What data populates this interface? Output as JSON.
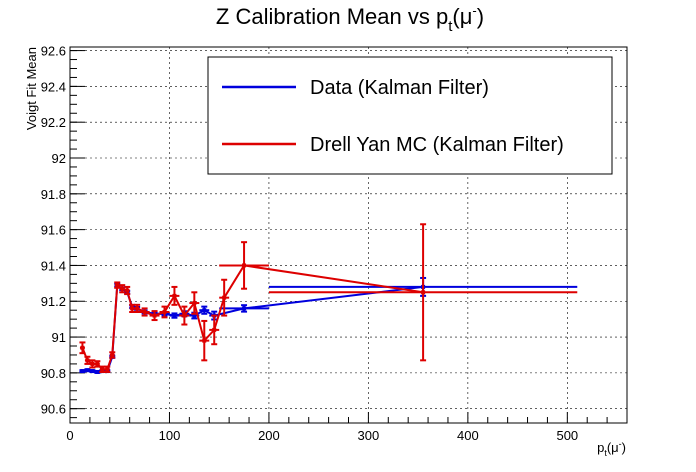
{
  "chart_data": {
    "type": "scatter",
    "title": {
      "main": "Z Calibration Mean vs p",
      "sub": "t",
      "tail": "(μ",
      "sup": "-",
      "close": ")"
    },
    "xlabel": {
      "main": "p",
      "sub": "t",
      "tail": "(μ",
      "sup": "-",
      "close": ")"
    },
    "ylabel": "Voigt Fit Mean",
    "xlim": [
      0,
      560
    ],
    "ylim": [
      90.52,
      92.62
    ],
    "x_ticks": [
      0,
      100,
      200,
      300,
      400,
      500
    ],
    "x_tick_labels": [
      "0",
      "100",
      "200",
      "300",
      "400",
      "500"
    ],
    "y_ticks": [
      90.6,
      90.8,
      91.0,
      91.2,
      91.4,
      91.6,
      91.8,
      92.0,
      92.2,
      92.4,
      92.6
    ],
    "y_tick_labels": [
      "90.6",
      "90.8",
      "91",
      "91.2",
      "91.4",
      "91.6",
      "91.8",
      "92",
      "92.2",
      "92.4",
      "92.6"
    ],
    "grid": true,
    "legend_position": "top-right",
    "series": [
      {
        "name": "Data (Kalman Filter)",
        "color": "#0000dd",
        "points": [
          {
            "x": 12.5,
            "y": 90.81,
            "xerr": 2.5,
            "yerr": 0.005
          },
          {
            "x": 17.5,
            "y": 90.815,
            "xerr": 2.5,
            "yerr": 0.005
          },
          {
            "x": 22.5,
            "y": 90.81,
            "xerr": 2.5,
            "yerr": 0.005
          },
          {
            "x": 27.5,
            "y": 90.805,
            "xerr": 2.5,
            "yerr": 0.005
          },
          {
            "x": 32.5,
            "y": 90.81,
            "xerr": 2.5,
            "yerr": 0.005
          },
          {
            "x": 37.5,
            "y": 90.81,
            "xerr": 2.5,
            "yerr": 0.005
          },
          {
            "x": 42.5,
            "y": 90.89,
            "xerr": 2.5,
            "yerr": 0.006
          },
          {
            "x": 47.5,
            "y": 91.29,
            "xerr": 2.5,
            "yerr": 0.008
          },
          {
            "x": 52.5,
            "y": 91.27,
            "xerr": 2.5,
            "yerr": 0.008
          },
          {
            "x": 57.5,
            "y": 91.25,
            "xerr": 2.5,
            "yerr": 0.008
          },
          {
            "x": 62.5,
            "y": 91.17,
            "xerr": 2.5,
            "yerr": 0.008
          },
          {
            "x": 67.5,
            "y": 91.16,
            "xerr": 2.5,
            "yerr": 0.008
          },
          {
            "x": 75,
            "y": 91.14,
            "xerr": 5,
            "yerr": 0.008
          },
          {
            "x": 85,
            "y": 91.13,
            "xerr": 5,
            "yerr": 0.01
          },
          {
            "x": 95,
            "y": 91.13,
            "xerr": 5,
            "yerr": 0.01
          },
          {
            "x": 105,
            "y": 91.12,
            "xerr": 5,
            "yerr": 0.012
          },
          {
            "x": 115,
            "y": 91.13,
            "xerr": 5,
            "yerr": 0.014
          },
          {
            "x": 125,
            "y": 91.12,
            "xerr": 5,
            "yerr": 0.016
          },
          {
            "x": 135,
            "y": 91.15,
            "xerr": 5,
            "yerr": 0.02
          },
          {
            "x": 145,
            "y": 91.12,
            "xerr": 5,
            "yerr": 0.022
          },
          {
            "x": 175,
            "y": 91.16,
            "xerr": 25,
            "yerr": 0.018
          },
          {
            "x": 355,
            "y": 91.28,
            "xerr": 155,
            "yerr": 0.05
          }
        ]
      },
      {
        "name": "Drell Yan MC (Kalman Filter)",
        "color": "#dd0000",
        "points": [
          {
            "x": 12.5,
            "y": 90.94,
            "xerr": 2.5,
            "yerr": 0.03
          },
          {
            "x": 17.5,
            "y": 90.87,
            "xerr": 2.5,
            "yerr": 0.02
          },
          {
            "x": 22.5,
            "y": 90.85,
            "xerr": 2.5,
            "yerr": 0.02
          },
          {
            "x": 27.5,
            "y": 90.85,
            "xerr": 2.5,
            "yerr": 0.015
          },
          {
            "x": 32.5,
            "y": 90.82,
            "xerr": 2.5,
            "yerr": 0.015
          },
          {
            "x": 37.5,
            "y": 90.82,
            "xerr": 2.5,
            "yerr": 0.015
          },
          {
            "x": 42.5,
            "y": 90.9,
            "xerr": 2.5,
            "yerr": 0.015
          },
          {
            "x": 47.5,
            "y": 91.29,
            "xerr": 2.5,
            "yerr": 0.015
          },
          {
            "x": 52.5,
            "y": 91.27,
            "xerr": 2.5,
            "yerr": 0.02
          },
          {
            "x": 57.5,
            "y": 91.26,
            "xerr": 2.5,
            "yerr": 0.02
          },
          {
            "x": 62.5,
            "y": 91.16,
            "xerr": 2.5,
            "yerr": 0.02
          },
          {
            "x": 67.5,
            "y": 91.16,
            "xerr": 2.5,
            "yerr": 0.02
          },
          {
            "x": 75,
            "y": 91.14,
            "xerr": 5,
            "yerr": 0.02
          },
          {
            "x": 85,
            "y": 91.12,
            "xerr": 5,
            "yerr": 0.025
          },
          {
            "x": 95,
            "y": 91.14,
            "xerr": 5,
            "yerr": 0.03
          },
          {
            "x": 105,
            "y": 91.23,
            "xerr": 5,
            "yerr": 0.05
          },
          {
            "x": 115,
            "y": 91.12,
            "xerr": 5,
            "yerr": 0.05
          },
          {
            "x": 125,
            "y": 91.19,
            "xerr": 5,
            "yerr": 0.06
          },
          {
            "x": 135,
            "y": 90.98,
            "xerr": 5,
            "yerr": 0.11
          },
          {
            "x": 145,
            "y": 91.04,
            "xerr": 5,
            "yerr": 0.08
          },
          {
            "x": 155,
            "y": 91.22,
            "xerr": 5,
            "yerr": 0.1
          },
          {
            "x": 175,
            "y": 91.4,
            "xerr": 25,
            "yerr": 0.13
          },
          {
            "x": 355,
            "y": 91.25,
            "xerr": 155,
            "yerr": 0.38
          }
        ]
      }
    ]
  }
}
